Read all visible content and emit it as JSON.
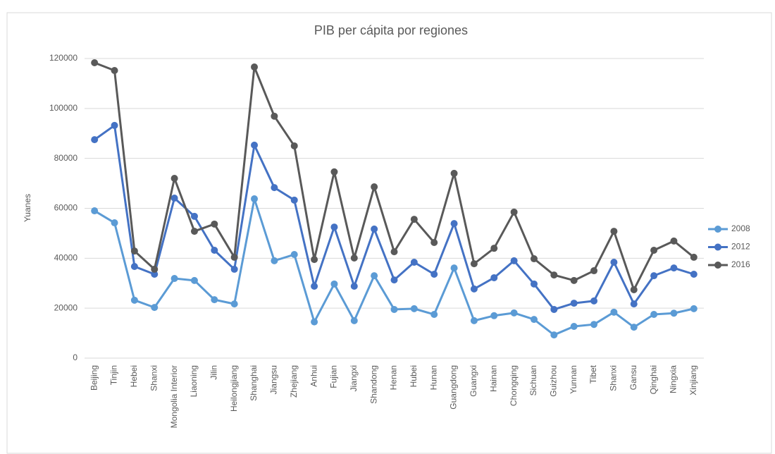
{
  "chart_data": {
    "type": "line",
    "title": "PIB per cápita por regiones",
    "y_label": "Yuanes",
    "categories": [
      "Beijing",
      "Tinjin",
      "Hebei",
      "Shanxi",
      "Mongolia Interior",
      "Liaoning",
      "Jilin",
      "Heilongjiang",
      "Shanghai",
      "Jiangsu",
      "Zhejiang",
      "Anhui",
      "Fujian",
      "Jiangxi",
      "Shandong",
      "Henan",
      "Hubei",
      "Hunan",
      "Guangdong",
      "Guangxi",
      "Hainan",
      "Chongqing",
      "Sichuan",
      "Guizhou",
      "Yunnan",
      "Tibet",
      "Shanxi",
      "Gansu",
      "Qinghai",
      "Ningxia",
      "Xinjiang"
    ],
    "series": [
      {
        "name": "2008",
        "color": "#5b9bd5",
        "values": [
          59000,
          54200,
          23200,
          20300,
          31900,
          31100,
          23400,
          21700,
          63800,
          39000,
          41500,
          14500,
          29700,
          15000,
          33000,
          19500,
          19800,
          17500,
          36100,
          15000,
          17000,
          18100,
          15500,
          9300,
          12700,
          13500,
          18400,
          12400,
          17500,
          18000,
          19800
        ]
      },
      {
        "name": "2012",
        "color": "#4472c4",
        "values": [
          87500,
          93200,
          36700,
          33600,
          64100,
          56800,
          43200,
          35600,
          85300,
          68300,
          63300,
          28800,
          52500,
          28800,
          51700,
          31300,
          38400,
          33600,
          53900,
          27700,
          32200,
          39000,
          29700,
          19500,
          22000,
          22900,
          38400,
          21700,
          33000,
          36100,
          33600
        ]
      },
      {
        "name": "2016",
        "color": "#595959",
        "values": [
          118300,
          115200,
          42900,
          35600,
          72000,
          50800,
          53700,
          40400,
          116600,
          96900,
          85000,
          39500,
          74600,
          40100,
          68600,
          42600,
          55600,
          46300,
          74000,
          37800,
          44000,
          58500,
          39800,
          33300,
          31100,
          35000,
          50800,
          27400,
          43200,
          46900,
          40400
        ]
      }
    ],
    "ylim": [
      0,
      120000
    ],
    "yticks": [
      0,
      20000,
      40000,
      60000,
      80000,
      100000,
      120000
    ],
    "grid": true,
    "legend": "right"
  }
}
